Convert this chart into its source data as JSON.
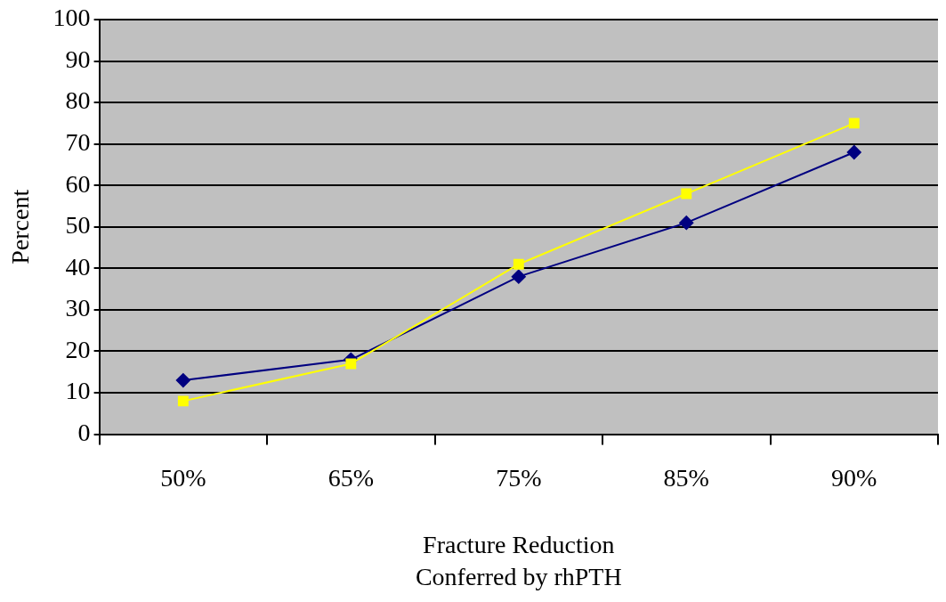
{
  "chart_data": {
    "type": "line",
    "xlabel": "Fracture Reduction\nConferred by rhPTH",
    "ylabel": "Percent",
    "categories": [
      "50%",
      "65%",
      "75%",
      "85%",
      "90%"
    ],
    "series": [
      {
        "color": "#000080",
        "values": [
          13,
          18,
          38,
          51,
          68
        ],
        "marker": "diamond"
      },
      {
        "color": "#ffff00",
        "values": [
          8,
          17,
          41,
          58,
          75
        ],
        "marker": "square"
      }
    ],
    "ylim": [
      0,
      100
    ],
    "yticks": [
      0,
      10,
      20,
      30,
      40,
      50,
      60,
      70,
      80,
      90,
      100
    ],
    "grid": "y",
    "legend": false
  }
}
